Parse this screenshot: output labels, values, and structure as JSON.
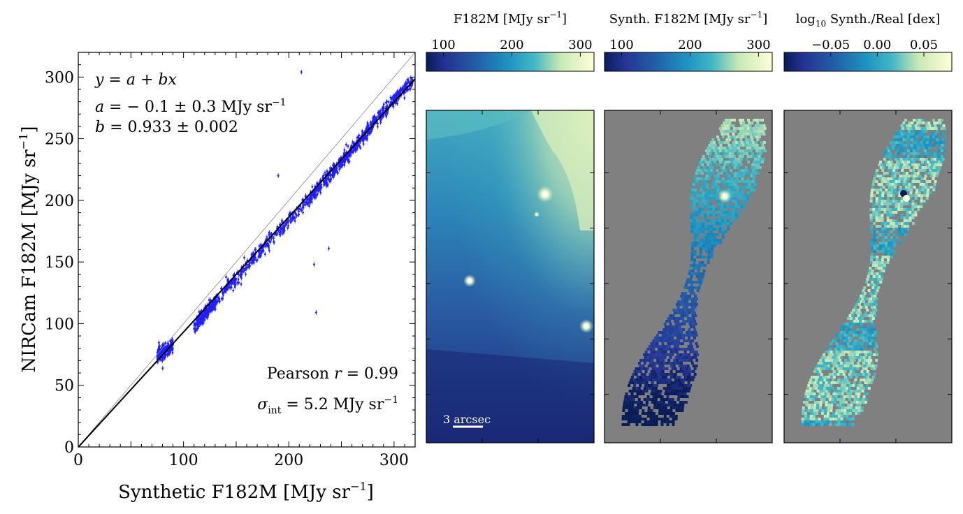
{
  "chart_data": [
    {
      "type": "scatter",
      "xlabel": {
        "main": "Synthetic F182M [MJy sr",
        "sup": "−1",
        "close": "]"
      },
      "ylabel": {
        "main": "NIRCam F182M [MJy sr",
        "sup": "−1",
        "close": "]"
      },
      "xlim": [
        0,
        320
      ],
      "ylim": [
        0,
        320
      ],
      "xticks": [
        0,
        100,
        200,
        300
      ],
      "yticks": [
        0,
        50,
        100,
        150,
        200,
        250,
        300
      ],
      "xtick_labels": [
        "0",
        "100",
        "200",
        "300"
      ],
      "ytick_labels": [
        "0",
        "50",
        "100",
        "150",
        "200",
        "250",
        "300"
      ],
      "grid": false,
      "point_color": "#1f1fff",
      "fit": {
        "a": -0.1,
        "a_err": 0.3,
        "b": 0.933,
        "b_err": 0.002
      },
      "one_to_one_line": true,
      "annotations": {
        "eq": {
          "y": "y",
          "eq": " = ",
          "a": "a",
          "plus": " + ",
          "bx": "bx"
        },
        "a_line": {
          "sym": "a",
          "text": " = − 0.1 ± 0.3 MJy sr",
          "sup": "−1"
        },
        "b_line": {
          "sym": "b",
          "text": " = 0.933 ± 0.002"
        },
        "pearson": {
          "pre": "Pearson ",
          "sym": "r",
          "text": " = 0.99"
        },
        "sigma": {
          "sym": "σ",
          "sub": "int",
          "text": " = 5.2 MJy sr",
          "sup": "−1"
        }
      },
      "trend_points": [
        [
          75,
          74.7
        ],
        [
          90,
          81.4
        ],
        [
          110,
          98.5
        ],
        [
          130,
          117.4
        ],
        [
          150,
          137
        ],
        [
          170,
          156
        ],
        [
          190,
          174.4
        ],
        [
          210,
          192
        ],
        [
          230,
          211.8
        ],
        [
          250,
          231
        ],
        [
          265,
          245.8
        ],
        [
          280,
          262
        ],
        [
          300,
          281.4
        ],
        [
          315,
          296
        ]
      ],
      "outliers": [
        [
          212,
          304
        ],
        [
          224,
          148
        ],
        [
          226,
          109
        ],
        [
          190,
          220
        ],
        [
          238,
          161
        ]
      ]
    },
    {
      "type": "heatmap",
      "title": {
        "main": "F182M [MJy sr",
        "sup": "−1",
        "close": "]"
      },
      "colorbar": {
        "range": [
          75,
          320
        ],
        "ticks": [
          100,
          200,
          300
        ],
        "tick_labels": [
          "100",
          "200",
          "300"
        ],
        "colormap": "YlGnBu_r"
      },
      "scalebar_label": "3 arcsec"
    },
    {
      "type": "heatmap",
      "title": {
        "main": "Synth. F182M [MJy sr",
        "sup": "−1",
        "close": "]"
      },
      "colorbar": {
        "range": [
          75,
          320
        ],
        "ticks": [
          100,
          200,
          300
        ],
        "tick_labels": [
          "100",
          "200",
          "300"
        ],
        "colormap": "YlGnBu_r"
      },
      "masked_color": "#808080"
    },
    {
      "type": "heatmap",
      "title": {
        "pre": "log",
        "sub": "10",
        "main": " Synth./Real [dex]"
      },
      "colorbar": {
        "range": [
          -0.1,
          0.08
        ],
        "ticks": [
          -0.05,
          0.0,
          0.05
        ],
        "tick_labels": [
          "−0.05",
          "0.00",
          "0.05"
        ],
        "colormap": "YlGnBu_r"
      },
      "masked_color": "#808080"
    }
  ]
}
